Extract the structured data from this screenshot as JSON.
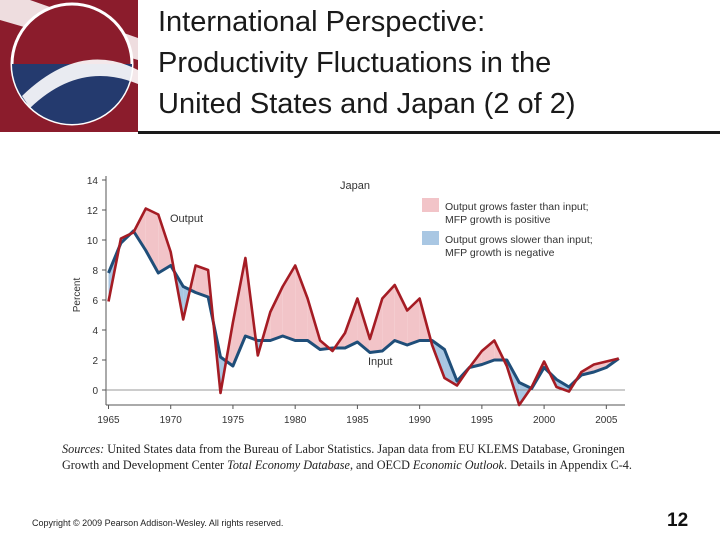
{
  "slide": {
    "title_lines": [
      "International Perspective:",
      "Productivity Fluctuations in the",
      "United States and Japan (2 of 2)"
    ],
    "sources": {
      "label": "Sources:",
      "text_1": " United States data from the Bureau of Labor Statistics. Japan data from EU KLEMS Database, Groningen Growth and Development Center ",
      "italic_1": "Total Economy Database",
      "text_2": ", and OECD ",
      "italic_2": "Economic Outlook",
      "text_3": ". Details in Appendix C-4."
    },
    "copyright": "Copyright © 2009 Pearson Addison-Wesley. All rights reserved.",
    "page_number": "12"
  },
  "colors": {
    "output_line": "#a51c24",
    "input_line": "#1f4e79",
    "fill_positive": "#f2c4c8",
    "fill_negative": "#a9c7e3",
    "logo_maroon": "#8b1c2c",
    "logo_navy": "#243a6e"
  },
  "chart_data": {
    "type": "line",
    "title": "Japan",
    "ylabel": "Percent",
    "xlabel": "",
    "ylim": [
      -1,
      14
    ],
    "xlim": [
      1964.8,
      2006.5
    ],
    "y_ticks": [
      0,
      2,
      4,
      6,
      8,
      10,
      12,
      14
    ],
    "x_ticks": [
      1965,
      1970,
      1975,
      1980,
      1985,
      1990,
      1995,
      2000,
      2005
    ],
    "grid": false,
    "legend": [
      {
        "label_lines": [
          "Output grows faster than input;",
          "MFP growth is positive"
        ],
        "swatch": "positive"
      },
      {
        "label_lines": [
          "Output grows slower than input;",
          "MFP growth is negative"
        ],
        "swatch": "negative"
      }
    ],
    "legend_position": "top-right",
    "annotations": {
      "output": "Output",
      "input": "Input"
    },
    "x": [
      1965,
      1966,
      1967,
      1968,
      1969,
      1970,
      1971,
      1972,
      1973,
      1974,
      1975,
      1976,
      1977,
      1978,
      1979,
      1980,
      1981,
      1982,
      1983,
      1984,
      1985,
      1986,
      1987,
      1988,
      1989,
      1990,
      1991,
      1992,
      1993,
      1994,
      1995,
      1996,
      1997,
      1998,
      1999,
      2000,
      2001,
      2002,
      2003,
      2004,
      2005,
      2006
    ],
    "series": [
      {
        "name": "Output",
        "values": [
          5.9,
          10.1,
          10.5,
          12.1,
          11.7,
          9.2,
          4.7,
          8.3,
          8.0,
          -0.2,
          4.5,
          8.8,
          2.3,
          5.2,
          6.9,
          8.3,
          6.1,
          3.3,
          2.6,
          3.8,
          6.1,
          3.4,
          6.1,
          7.0,
          5.3,
          6.1,
          3.0,
          0.8,
          0.3,
          1.5,
          2.6,
          3.3,
          1.6,
          -1.0,
          0.2,
          1.9,
          0.2,
          -0.1,
          1.2,
          1.7,
          1.9,
          2.1
        ]
      },
      {
        "name": "Input",
        "values": [
          7.8,
          9.8,
          10.6,
          9.3,
          7.8,
          8.3,
          6.9,
          6.5,
          6.2,
          2.2,
          1.6,
          3.6,
          3.3,
          3.3,
          3.6,
          3.3,
          3.3,
          2.7,
          2.8,
          2.8,
          3.2,
          2.5,
          2.6,
          3.3,
          3.0,
          3.3,
          3.3,
          2.7,
          0.6,
          1.5,
          1.7,
          2.0,
          2.0,
          0.5,
          0.1,
          1.5,
          0.7,
          0.2,
          1.0,
          1.2,
          1.5,
          2.1
        ]
      }
    ]
  }
}
